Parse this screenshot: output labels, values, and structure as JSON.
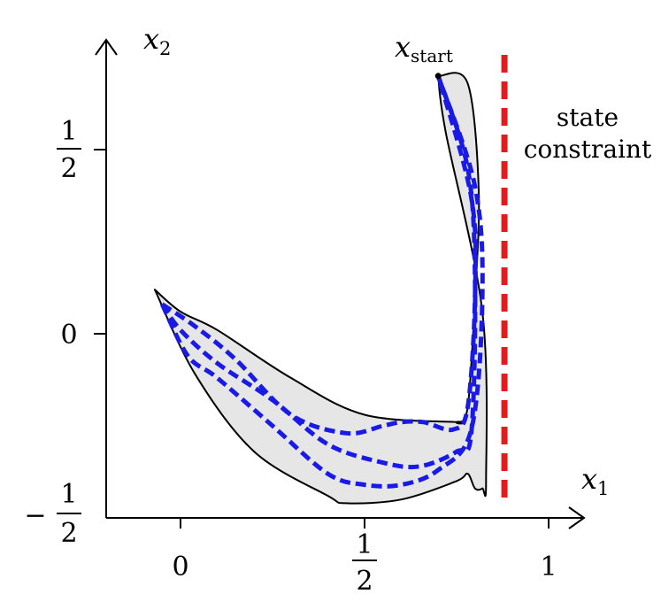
{
  "axes": {
    "x_label": "x",
    "x_label_sub": "1",
    "y_label": "x",
    "y_label_sub": "2"
  },
  "ticks": {
    "x": [
      {
        "value": 0,
        "text": "0"
      },
      {
        "value": 0.5,
        "num": "1",
        "den": "2"
      },
      {
        "value": 1,
        "text": "1"
      }
    ],
    "y": [
      {
        "value": 0.5,
        "num": "1",
        "den": "2"
      },
      {
        "value": 0,
        "text": "0"
      },
      {
        "value": -0.5,
        "sign": "−",
        "num": "1",
        "den": "2"
      }
    ]
  },
  "annotations": {
    "start_label": "x",
    "start_label_sub": "start",
    "constraint_line1": "state",
    "constraint_line2": "constraint"
  },
  "constraint": {
    "x": 0.88,
    "color": "#e61a1a"
  },
  "colors": {
    "trajectory": "#1a1ae6",
    "tube_fill": "#e6e6e6",
    "constraint": "#e61a1a"
  },
  "tube": {
    "upper": [
      [
        -0.07,
        0.12
      ],
      [
        0.0,
        0.06
      ],
      [
        0.1,
        0.01
      ],
      [
        0.3,
        -0.12
      ],
      [
        0.5,
        -0.22
      ],
      [
        0.75,
        -0.24
      ],
      [
        0.75,
        -0.24
      ],
      [
        0.78,
        -0.2
      ],
      [
        0.8,
        0.1
      ],
      [
        0.81,
        0.39
      ],
      [
        0.78,
        0.68
      ],
      [
        0.7,
        0.7
      ]
    ],
    "lower": [
      [
        0.7,
        0.7
      ],
      [
        0.72,
        0.55
      ],
      [
        0.82,
        0.06
      ],
      [
        0.83,
        -0.4
      ],
      [
        0.82,
        -0.42
      ],
      [
        0.8,
        -0.42
      ],
      [
        0.78,
        -0.38
      ],
      [
        0.75,
        -0.4
      ],
      [
        0.6,
        -0.45
      ],
      [
        0.45,
        -0.46
      ],
      [
        0.4,
        -0.44
      ],
      [
        0.2,
        -0.32
      ],
      [
        0.04,
        -0.11
      ],
      [
        -0.07,
        0.12
      ]
    ]
  },
  "trajectories": [
    {
      "points": [
        [
          -0.05,
          0.08
        ],
        [
          0.04,
          0.02
        ],
        [
          0.15,
          -0.07
        ],
        [
          0.3,
          -0.22
        ],
        [
          0.45,
          -0.27
        ],
        [
          0.55,
          -0.25
        ],
        [
          0.6,
          -0.24
        ],
        [
          0.66,
          -0.24
        ],
        [
          0.74,
          -0.26
        ],
        [
          0.78,
          -0.2
        ],
        [
          0.8,
          0.1
        ],
        [
          0.79,
          0.37
        ],
        [
          0.7,
          0.7
        ]
      ]
    },
    {
      "points": [
        [
          -0.05,
          0.08
        ],
        [
          0.0,
          0.01
        ],
        [
          0.1,
          -0.08
        ],
        [
          0.25,
          -0.18
        ],
        [
          0.4,
          -0.3
        ],
        [
          0.55,
          -0.35
        ],
        [
          0.65,
          -0.36
        ],
        [
          0.75,
          -0.32
        ],
        [
          0.79,
          -0.27
        ],
        [
          0.8,
          0.15
        ],
        [
          0.78,
          0.45
        ],
        [
          0.7,
          0.7
        ]
      ]
    },
    {
      "points": [
        [
          -0.05,
          0.08
        ],
        [
          0.02,
          -0.06
        ],
        [
          0.1,
          -0.12
        ],
        [
          0.25,
          -0.25
        ],
        [
          0.4,
          -0.38
        ],
        [
          0.5,
          -0.41
        ],
        [
          0.6,
          -0.41
        ],
        [
          0.7,
          -0.37
        ],
        [
          0.79,
          -0.26
        ],
        [
          0.82,
          0.1
        ],
        [
          0.8,
          0.4
        ],
        [
          0.7,
          0.7
        ]
      ]
    }
  ]
}
